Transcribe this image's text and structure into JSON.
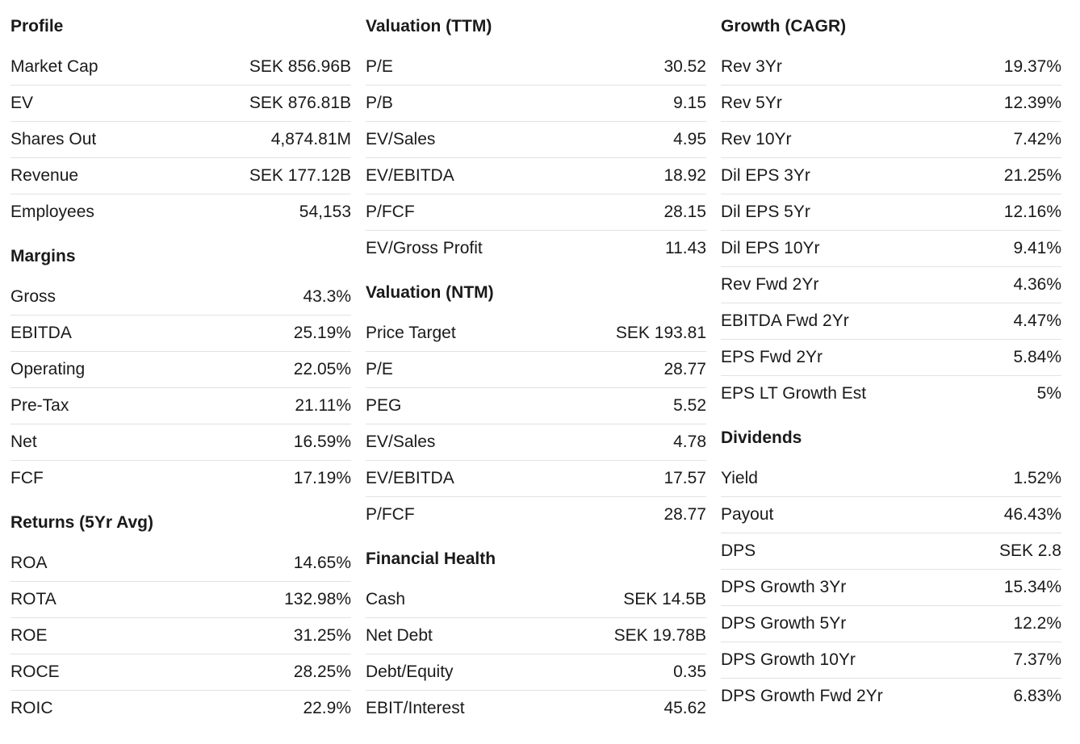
{
  "columns": [
    {
      "sections": [
        {
          "title": "Profile",
          "rows": [
            {
              "label": "Market Cap",
              "value": "SEK 856.96B"
            },
            {
              "label": "EV",
              "value": "SEK 876.81B"
            },
            {
              "label": "Shares Out",
              "value": "4,874.81M"
            },
            {
              "label": "Revenue",
              "value": "SEK 177.12B"
            },
            {
              "label": "Employees",
              "value": "54,153"
            }
          ]
        },
        {
          "title": "Margins",
          "rows": [
            {
              "label": "Gross",
              "value": "43.3%"
            },
            {
              "label": "EBITDA",
              "value": "25.19%"
            },
            {
              "label": "Operating",
              "value": "22.05%"
            },
            {
              "label": "Pre-Tax",
              "value": "21.11%"
            },
            {
              "label": "Net",
              "value": "16.59%"
            },
            {
              "label": "FCF",
              "value": "17.19%"
            }
          ]
        },
        {
          "title": "Returns (5Yr Avg)",
          "rows": [
            {
              "label": "ROA",
              "value": "14.65%"
            },
            {
              "label": "ROTA",
              "value": "132.98%"
            },
            {
              "label": "ROE",
              "value": "31.25%"
            },
            {
              "label": "ROCE",
              "value": "28.25%"
            },
            {
              "label": "ROIC",
              "value": "22.9%"
            }
          ]
        }
      ]
    },
    {
      "sections": [
        {
          "title": "Valuation (TTM)",
          "rows": [
            {
              "label": "P/E",
              "value": "30.52"
            },
            {
              "label": "P/B",
              "value": "9.15"
            },
            {
              "label": "EV/Sales",
              "value": "4.95"
            },
            {
              "label": "EV/EBITDA",
              "value": "18.92"
            },
            {
              "label": "P/FCF",
              "value": "28.15"
            },
            {
              "label": "EV/Gross Profit",
              "value": "11.43"
            }
          ]
        },
        {
          "title": "Valuation (NTM)",
          "rows": [
            {
              "label": "Price Target",
              "value": "SEK 193.81"
            },
            {
              "label": "P/E",
              "value": "28.77"
            },
            {
              "label": "PEG",
              "value": "5.52"
            },
            {
              "label": "EV/Sales",
              "value": "4.78"
            },
            {
              "label": "EV/EBITDA",
              "value": "17.57"
            },
            {
              "label": "P/FCF",
              "value": "28.77"
            }
          ]
        },
        {
          "title": "Financial Health",
          "rows": [
            {
              "label": "Cash",
              "value": "SEK 14.5B"
            },
            {
              "label": "Net Debt",
              "value": "SEK 19.78B"
            },
            {
              "label": "Debt/Equity",
              "value": "0.35"
            },
            {
              "label": "EBIT/Interest",
              "value": "45.62"
            }
          ]
        }
      ]
    },
    {
      "sections": [
        {
          "title": "Growth (CAGR)",
          "rows": [
            {
              "label": "Rev 3Yr",
              "value": "19.37%"
            },
            {
              "label": "Rev 5Yr",
              "value": "12.39%"
            },
            {
              "label": "Rev 10Yr",
              "value": "7.42%"
            },
            {
              "label": "Dil EPS 3Yr",
              "value": "21.25%"
            },
            {
              "label": "Dil EPS 5Yr",
              "value": "12.16%"
            },
            {
              "label": "Dil EPS 10Yr",
              "value": "9.41%"
            },
            {
              "label": "Rev Fwd 2Yr",
              "value": "4.36%"
            },
            {
              "label": "EBITDA Fwd 2Yr",
              "value": "4.47%"
            },
            {
              "label": "EPS Fwd 2Yr",
              "value": "5.84%"
            },
            {
              "label": "EPS LT Growth Est",
              "value": "5%"
            }
          ]
        },
        {
          "title": "Dividends",
          "rows": [
            {
              "label": "Yield",
              "value": "1.52%"
            },
            {
              "label": "Payout",
              "value": "46.43%"
            },
            {
              "label": "DPS",
              "value": "SEK 2.8"
            },
            {
              "label": "DPS Growth 3Yr",
              "value": "15.34%"
            },
            {
              "label": "DPS Growth 5Yr",
              "value": "12.2%"
            },
            {
              "label": "DPS Growth 10Yr",
              "value": "7.37%"
            },
            {
              "label": "DPS Growth Fwd 2Yr",
              "value": "6.83%"
            }
          ]
        }
      ]
    }
  ]
}
